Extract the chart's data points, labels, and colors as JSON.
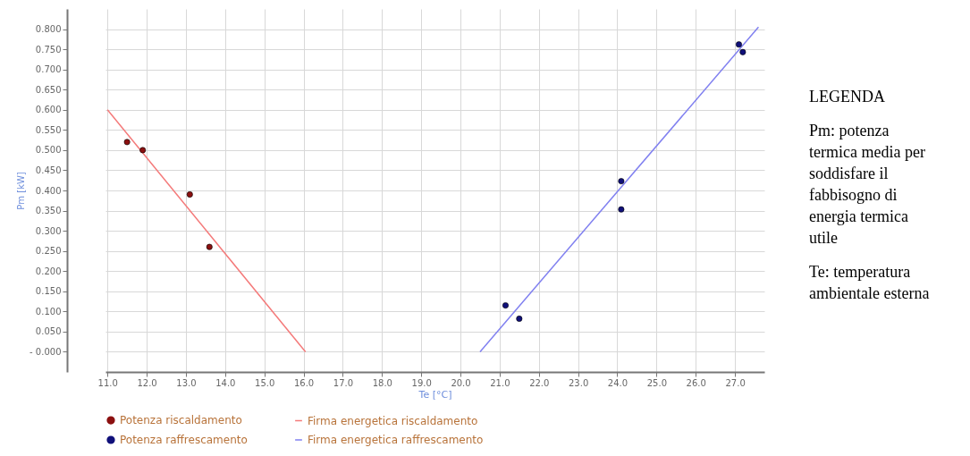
{
  "chart_data": {
    "type": "scatter",
    "xlabel": "Te [°C]",
    "ylabel": "Pm [kW]",
    "xlim": [
      10.95,
      27.75
    ],
    "ylim": [
      -0.05,
      0.85
    ],
    "xticks": [
      {
        "value": 11,
        "label": "11.0"
      },
      {
        "value": 12,
        "label": "12.0"
      },
      {
        "value": 13,
        "label": "13.0"
      },
      {
        "value": 14,
        "label": "14.0"
      },
      {
        "value": 15,
        "label": "15.0"
      },
      {
        "value": 16,
        "label": "16.0"
      },
      {
        "value": 17,
        "label": "17.0"
      },
      {
        "value": 18,
        "label": "18.0"
      },
      {
        "value": 19,
        "label": "19.0"
      },
      {
        "value": 20,
        "label": "20.0"
      },
      {
        "value": 21,
        "label": "21.0"
      },
      {
        "value": 22,
        "label": "22.0"
      },
      {
        "value": 23,
        "label": "23.0"
      },
      {
        "value": 24,
        "label": "24.0"
      },
      {
        "value": 25,
        "label": "25.0"
      },
      {
        "value": 26,
        "label": "26.0"
      },
      {
        "value": 27,
        "label": "27.0"
      }
    ],
    "yticks": [
      {
        "value": 0,
        "label": "- 0.000"
      },
      {
        "value": 0.05,
        "label": "0.050"
      },
      {
        "value": 0.1,
        "label": "0.100"
      },
      {
        "value": 0.15,
        "label": "0.150"
      },
      {
        "value": 0.2,
        "label": "0.200"
      },
      {
        "value": 0.25,
        "label": "0.250"
      },
      {
        "value": 0.3,
        "label": "0.300"
      },
      {
        "value": 0.35,
        "label": "0.350"
      },
      {
        "value": 0.4,
        "label": "0.400"
      },
      {
        "value": 0.45,
        "label": "0.450"
      },
      {
        "value": 0.5,
        "label": "0.500"
      },
      {
        "value": 0.55,
        "label": "0.550"
      },
      {
        "value": 0.6,
        "label": "0.600"
      },
      {
        "value": 0.65,
        "label": "0.650"
      },
      {
        "value": 0.7,
        "label": "0.700"
      },
      {
        "value": 0.75,
        "label": "0.750"
      },
      {
        "value": 0.8,
        "label": "0.800"
      }
    ],
    "grid": true,
    "legend": "bottom",
    "series": [
      {
        "name": "Potenza riscaldamento",
        "color": "#8b1010",
        "x": [
          11.5,
          11.9,
          13.1,
          13.6
        ],
        "values": [
          0.52,
          0.5,
          0.39,
          0.26
        ]
      },
      {
        "name": "Firma energetica riscaldamento",
        "type": "line",
        "color": "#f47a7a",
        "x": [
          11.0,
          16.05
        ],
        "values": [
          0.6,
          0.0
        ]
      },
      {
        "name": "Potenza raffrescamento",
        "color": "#10107a",
        "x": [
          21.15,
          21.5,
          24.1,
          24.1,
          27.1,
          27.2
        ],
        "values": [
          0.115,
          0.082,
          0.423,
          0.353,
          0.762,
          0.743
        ]
      },
      {
        "name": "Firma energetica raffrescamento",
        "type": "line",
        "color": "#8080f0",
        "x": [
          20.5,
          27.6
        ],
        "values": [
          0.0,
          0.805
        ]
      }
    ],
    "annotations": [
      "LEGENDA",
      "Pm: potenza termica media per soddisfare il fabbisogno di energia termica utile",
      "Te: temperatura ambientale esterna"
    ]
  }
}
